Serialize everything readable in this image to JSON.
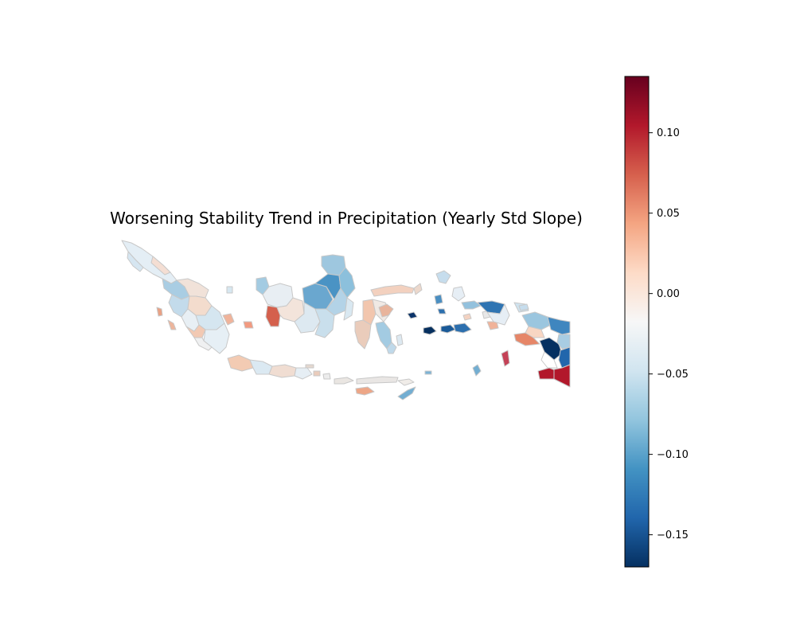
{
  "title": "Worsening Stability Trend in Precipitation (Yearly Std Slope)",
  "colorbar": {
    "min": -0.17,
    "max": 0.135,
    "ticks": [
      {
        "value": 0.1,
        "label": "0.10"
      },
      {
        "value": 0.05,
        "label": "0.05"
      },
      {
        "value": 0.0,
        "label": "0.00"
      },
      {
        "value": -0.05,
        "label": "−0.05"
      },
      {
        "value": -0.1,
        "label": "−0.10"
      },
      {
        "value": -0.15,
        "label": "−0.15"
      }
    ],
    "colormap": "RdBu_r",
    "stops": [
      "#053061",
      "#2166ac",
      "#4393c3",
      "#92c5de",
      "#d1e5f0",
      "#f7f7f7",
      "#fddbc7",
      "#f4a582",
      "#d6604d",
      "#b2182b",
      "#67001f"
    ]
  },
  "map": {
    "region": "Indonesia",
    "boundary_color": "#c8c8c8"
  }
}
